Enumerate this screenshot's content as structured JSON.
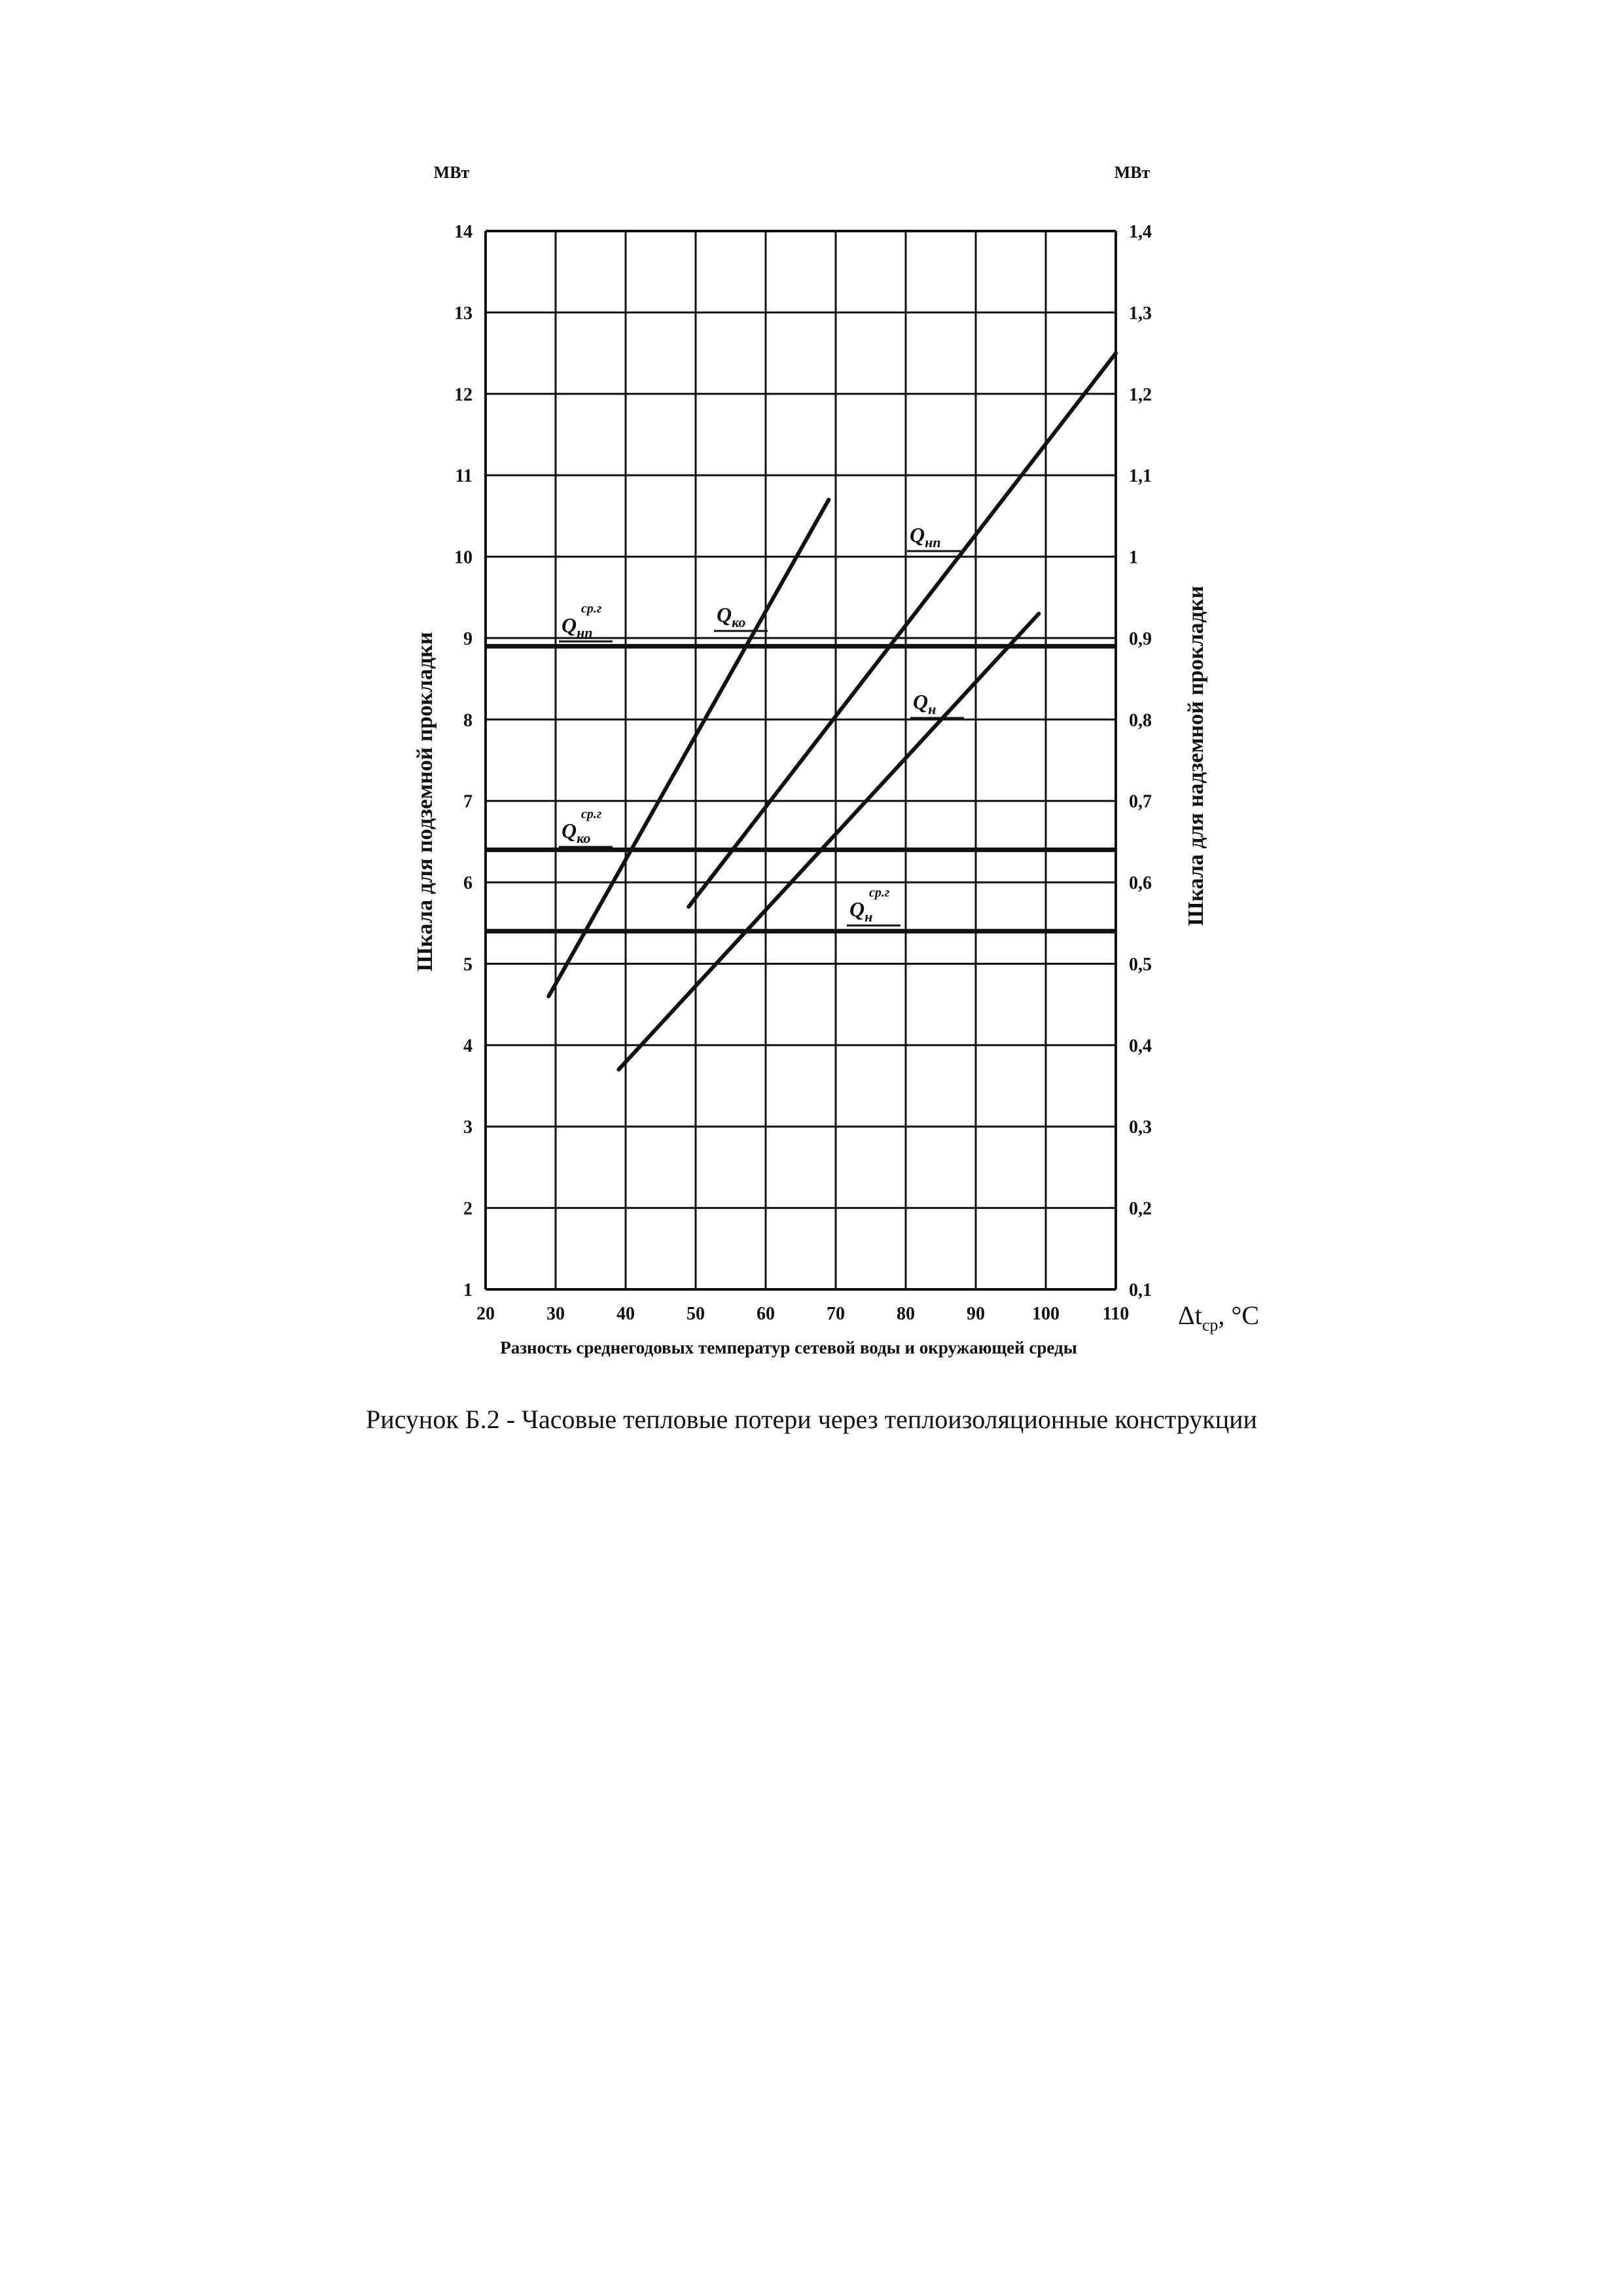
{
  "caption": "Рисунок Б.2 - Часовые тепловые потери через теплоизоляционные конструкции",
  "chart_data": {
    "type": "line",
    "title": "",
    "xlabel": "Разность среднегодовых температур сетевой воды и окружающей среды",
    "x_unit": "Δt",
    "x_unit_sub": "ср",
    "x_unit_suffix": ", °C",
    "ylabel_left": "Шкала для подземной прокладки",
    "ylabel_right": "Шкала для надземной прокладки",
    "y_unit_left": "МВт",
    "y_unit_right": "МВт",
    "xlim": [
      20,
      110
    ],
    "ylim_left": [
      1,
      14
    ],
    "ylim_right": [
      0.1,
      1.4
    ],
    "grid": true,
    "x_ticks": [
      "20",
      "30",
      "40",
      "50",
      "60",
      "70",
      "80",
      "90",
      "100",
      "110"
    ],
    "y_ticks_left": [
      "1",
      "2",
      "3",
      "4",
      "5",
      "6",
      "7",
      "8",
      "9",
      "10",
      "11",
      "12",
      "13",
      "14"
    ],
    "y_ticks_right": [
      "0,1",
      "0,2",
      "0,3",
      "0,4",
      "0,5",
      "0,6",
      "0,7",
      "0,8",
      "0,9",
      "1",
      "1,1",
      "1,2",
      "1,3",
      "1,4"
    ],
    "series": [
      {
        "name": "Qко",
        "axis": "left",
        "x": [
          29,
          69
        ],
        "y": [
          4.6,
          10.7
        ]
      },
      {
        "name": "Qнп",
        "axis": "left",
        "x": [
          49,
          110
        ],
        "y": [
          5.7,
          12.5
        ]
      },
      {
        "name": "Qн",
        "axis": "right",
        "x": [
          39,
          99
        ],
        "y": [
          0.37,
          0.93
        ]
      }
    ],
    "reference_lines": [
      {
        "name": "Qнп ср.г",
        "axis": "left",
        "y": 8.9
      },
      {
        "name": "Qко ср.г",
        "axis": "left",
        "y": 6.4
      },
      {
        "name": "Qн ср.г",
        "axis": "left",
        "y": 5.4
      }
    ]
  }
}
